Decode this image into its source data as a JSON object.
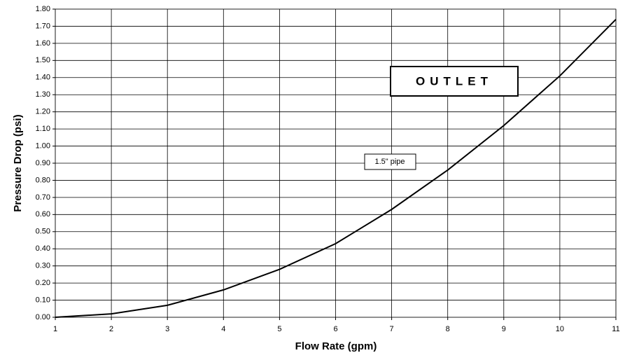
{
  "chart_data": {
    "type": "line",
    "x_label": "Flow Rate (gpm)",
    "y_label": "Pressure Drop (psi)",
    "annotations": [
      "OUTLET",
      "1.5\" pipe"
    ],
    "x": [
      1,
      2,
      3,
      4,
      5,
      6,
      7,
      8,
      9,
      10,
      11
    ],
    "series": [
      {
        "color": "#000000",
        "values": [
          0.0,
          0.02,
          0.07,
          0.16,
          0.28,
          0.43,
          0.63,
          0.86,
          1.12,
          1.41,
          1.74
        ]
      }
    ],
    "xlim": [
      1,
      11
    ],
    "xticks": [
      1,
      2,
      3,
      4,
      5,
      6,
      7,
      8,
      9,
      10,
      11
    ],
    "ylim": [
      0,
      1.8
    ],
    "yticks": [
      {
        "value": 0,
        "label": "0.00"
      },
      {
        "value": 0.1,
        "label": "0.10"
      },
      {
        "value": 0.2,
        "label": "0.20"
      },
      {
        "value": 0.3,
        "label": "0.30"
      },
      {
        "value": 0.4,
        "label": "0.40"
      },
      {
        "value": 0.5,
        "label": "0.50"
      },
      {
        "value": 0.6,
        "label": "0.60"
      },
      {
        "value": 0.7,
        "label": "0.70"
      },
      {
        "value": 0.8,
        "label": "0.80"
      },
      {
        "value": 0.9,
        "label": "0.90"
      },
      {
        "value": 1,
        "label": "1.00"
      },
      {
        "value": 1.1,
        "label": "1.10"
      },
      {
        "value": 1.2,
        "label": "1.20"
      },
      {
        "value": 1.3,
        "label": "1.30"
      },
      {
        "value": 1.4,
        "label": "1.40"
      },
      {
        "value": 1.5,
        "label": "1.50"
      },
      {
        "value": 1.6,
        "label": "1.60"
      },
      {
        "value": 1.7,
        "label": "1.70"
      },
      {
        "value": 1.8,
        "label": "1.80"
      }
    ],
    "grid": true
  }
}
